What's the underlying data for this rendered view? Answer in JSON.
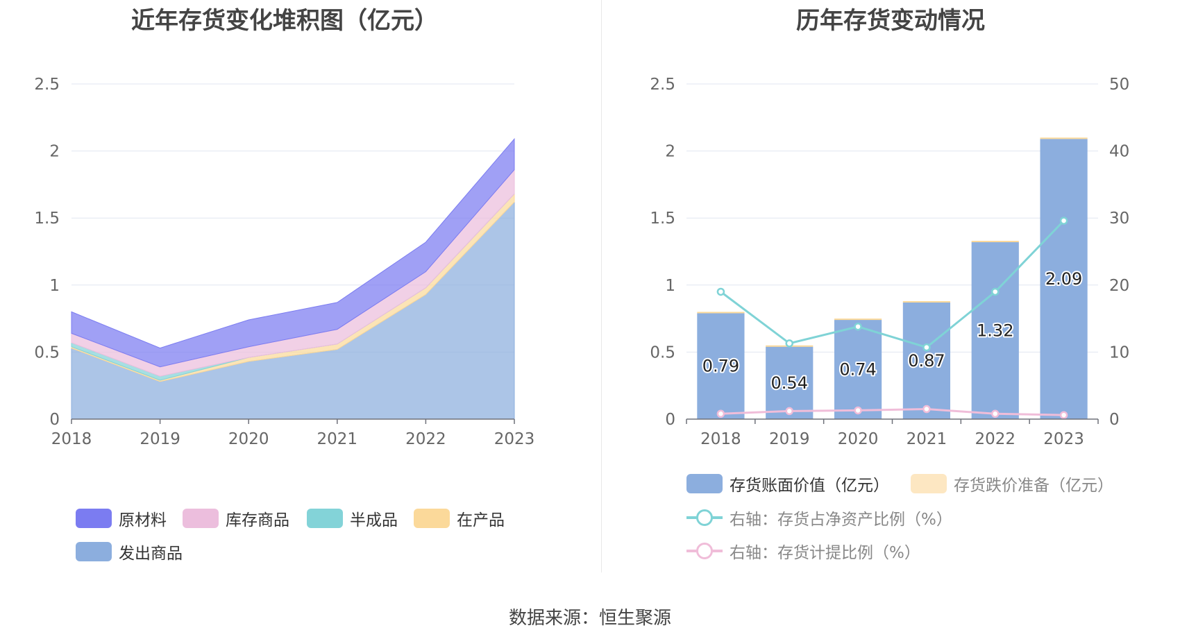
{
  "left_chart_title": "近年存货变化堆积图（亿元）",
  "right_chart_title": "历年存货变动情况",
  "source_text": "数据来源：恒生聚源",
  "chart_data": [
    {
      "type": "area",
      "stacked": true,
      "title": "近年存货变化堆积图（亿元）",
      "categories": [
        "2018",
        "2019",
        "2020",
        "2021",
        "2022",
        "2023"
      ],
      "ylim": [
        0,
        2.5
      ],
      "yticks": [
        "0",
        "0.5",
        "1",
        "1.5",
        "2",
        "2.5"
      ],
      "grid": true,
      "legend_position": "bottom",
      "series": [
        {
          "name": "发出商品",
          "color": "#8caede",
          "values": [
            0.53,
            0.28,
            0.43,
            0.52,
            0.93,
            1.62
          ]
        },
        {
          "name": "在产品",
          "color": "#fbd99a",
          "values": [
            0.01,
            0.01,
            0.03,
            0.04,
            0.05,
            0.06
          ]
        },
        {
          "name": "半成品",
          "color": "#83d3d8",
          "values": [
            0.03,
            0.03,
            0.0,
            0.0,
            0.0,
            0.0
          ]
        },
        {
          "name": "库存商品",
          "color": "#ecbedd",
          "values": [
            0.07,
            0.07,
            0.08,
            0.11,
            0.12,
            0.18
          ]
        },
        {
          "name": "原材料",
          "color": "#7b7cf1",
          "values": [
            0.16,
            0.14,
            0.2,
            0.2,
            0.22,
            0.23
          ]
        }
      ],
      "legend_order": [
        "原材料",
        "库存商品",
        "半成品",
        "在产品",
        "发出商品"
      ]
    },
    {
      "type": "bar",
      "title": "历年存货变动情况",
      "categories": [
        "2018",
        "2019",
        "2020",
        "2021",
        "2022",
        "2023"
      ],
      "ylim": [
        0,
        2.5
      ],
      "yticks": [
        "0",
        "0.5",
        "1",
        "1.5",
        "2",
        "2.5"
      ],
      "y2lim": [
        0,
        50
      ],
      "y2ticks": [
        "0",
        "10",
        "20",
        "30",
        "40",
        "50"
      ],
      "grid": true,
      "legend_position": "bottom",
      "series": [
        {
          "name": "存货账面价值（亿元）",
          "color": "#8caede",
          "values": [
            0.79,
            0.54,
            0.74,
            0.87,
            1.32,
            2.09
          ],
          "labels": [
            "0.79",
            "0.54",
            "0.74",
            "0.87",
            "1.32",
            "2.09"
          ]
        },
        {
          "name": "存货跌价准备（亿元）",
          "color": "#fbd99a",
          "values": [
            0.01,
            0.01,
            0.01,
            0.01,
            0.01,
            0.01
          ]
        },
        {
          "name": "右轴：存货占净资产比例（%）",
          "color": "#7fd3d6",
          "type": "line",
          "axis": "right",
          "values": [
            19.0,
            11.3,
            13.8,
            10.7,
            19.0,
            29.6
          ]
        },
        {
          "name": "右轴：存货计提比例（%）",
          "color": "#f0bdd9",
          "type": "line",
          "axis": "right",
          "values": [
            0.8,
            1.2,
            1.3,
            1.5,
            0.8,
            0.6
          ]
        }
      ]
    }
  ]
}
